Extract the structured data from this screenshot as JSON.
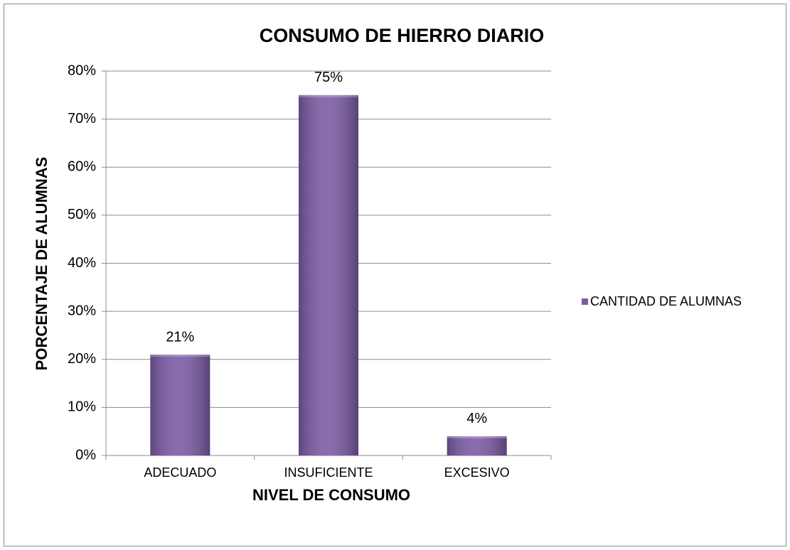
{
  "chart_data": {
    "type": "bar",
    "title": "CONSUMO DE HIERRO DIARIO",
    "x_label": "NIVEL DE CONSUMO",
    "y_label": "PORCENTAJE DE ALUMNAS",
    "categories": [
      "ADECUADO",
      "INSUFICIENTE",
      "EXCESIVO"
    ],
    "series": [
      {
        "name": "CANTIDAD DE ALUMNAS",
        "color": "#7c5ca6",
        "values": [
          21,
          75,
          4
        ],
        "value_labels": [
          "21%",
          "75%",
          "4%"
        ]
      }
    ],
    "ylim": [
      0,
      80
    ],
    "yticks": [
      {
        "value": 0,
        "label": "0%"
      },
      {
        "value": 10,
        "label": "10%"
      },
      {
        "value": 20,
        "label": "20%"
      },
      {
        "value": 30,
        "label": "30%"
      },
      {
        "value": 40,
        "label": "40%"
      },
      {
        "value": 50,
        "label": "50%"
      },
      {
        "value": 60,
        "label": "60%"
      },
      {
        "value": 70,
        "label": "70%"
      },
      {
        "value": 80,
        "label": "80%"
      }
    ],
    "grid": true,
    "legend": "right"
  }
}
